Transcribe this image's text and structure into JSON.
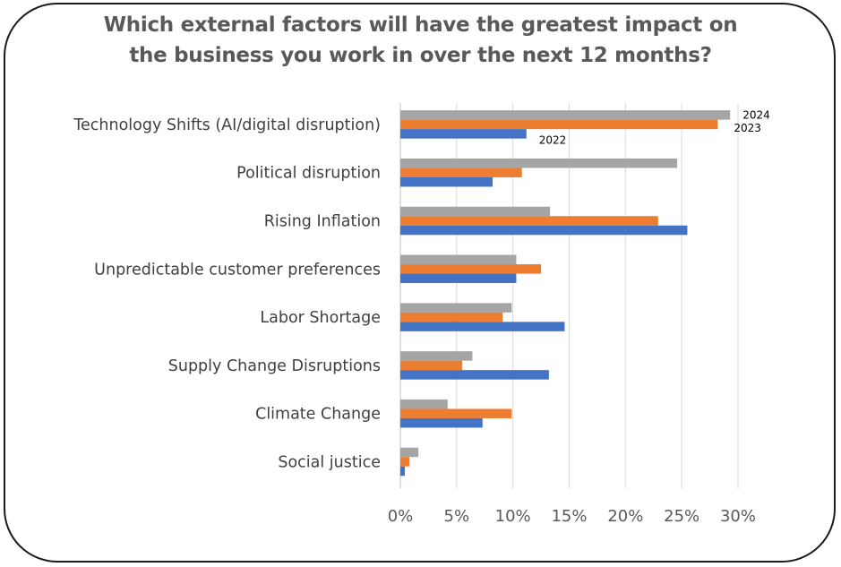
{
  "chart_data": {
    "type": "bar",
    "orientation": "horizontal",
    "title_lines": [
      "Which external factors will have the greatest impact on",
      "the business you work in over the next 12 months?"
    ],
    "categories": [
      "Technology Shifts (AI/digital disruption)",
      "Political disruption",
      "Rising Inflation",
      "Unpredictable customer preferences",
      "Labor Shortage",
      "Supply Change Disruptions",
      "Climate Change",
      "Social justice"
    ],
    "series": [
      {
        "name": "2024",
        "color": "#a5a5a5",
        "values": [
          29.3,
          24.6,
          13.3,
          10.3,
          9.9,
          6.4,
          4.2,
          1.6
        ]
      },
      {
        "name": "2023",
        "color": "#ed7d31",
        "values": [
          28.2,
          10.8,
          22.9,
          12.5,
          9.1,
          5.5,
          9.9,
          0.8
        ]
      },
      {
        "name": "2022",
        "color": "#4472c4",
        "values": [
          11.2,
          8.2,
          25.5,
          10.3,
          14.6,
          13.2,
          7.3,
          0.4
        ]
      }
    ],
    "xlim": [
      0,
      30
    ],
    "xticks": [
      "0%",
      "5%",
      "10%",
      "15%",
      "20%",
      "25%",
      "30%"
    ],
    "tick_values": [
      0,
      5,
      10,
      15,
      20,
      25,
      30
    ],
    "grid": true,
    "inline_series_labels": [
      "2024",
      "2023",
      "2022"
    ]
  }
}
